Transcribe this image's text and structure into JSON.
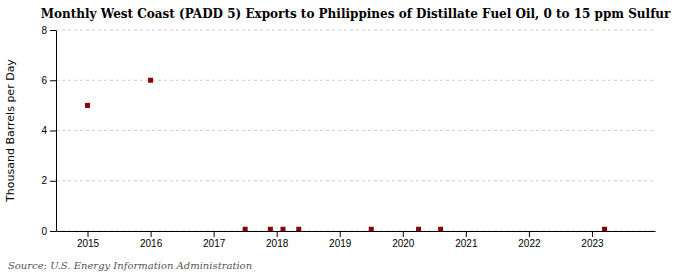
{
  "chart_data": {
    "type": "scatter",
    "title": "Monthly West Coast (PADD 5) Exports to Philippines of Distillate Fuel Oil, 0 to 15 ppm Sulfur",
    "ylabel": "Thousand Barrels per Day",
    "annotations": [
      "Source: U.S. Energy Information Administration"
    ],
    "x": [
      2015.0,
      2016.0,
      2017.5,
      2017.9,
      2018.1,
      2018.35,
      2019.5,
      2020.25,
      2020.6,
      2023.2
    ],
    "values": [
      5.0,
      6.0,
      0.07,
      0.07,
      0.07,
      0.07,
      0.07,
      0.07,
      0.07,
      0.07
    ],
    "color": "#8b0000",
    "marker": "square",
    "xlim": [
      2014.5,
      2024.0
    ],
    "ylim": [
      0,
      8
    ],
    "xticks": [
      2015,
      2016,
      2017,
      2018,
      2019,
      2020,
      2021,
      2022,
      2023
    ],
    "yticks": [
      0,
      2,
      4,
      6,
      8
    ],
    "grid": true
  }
}
